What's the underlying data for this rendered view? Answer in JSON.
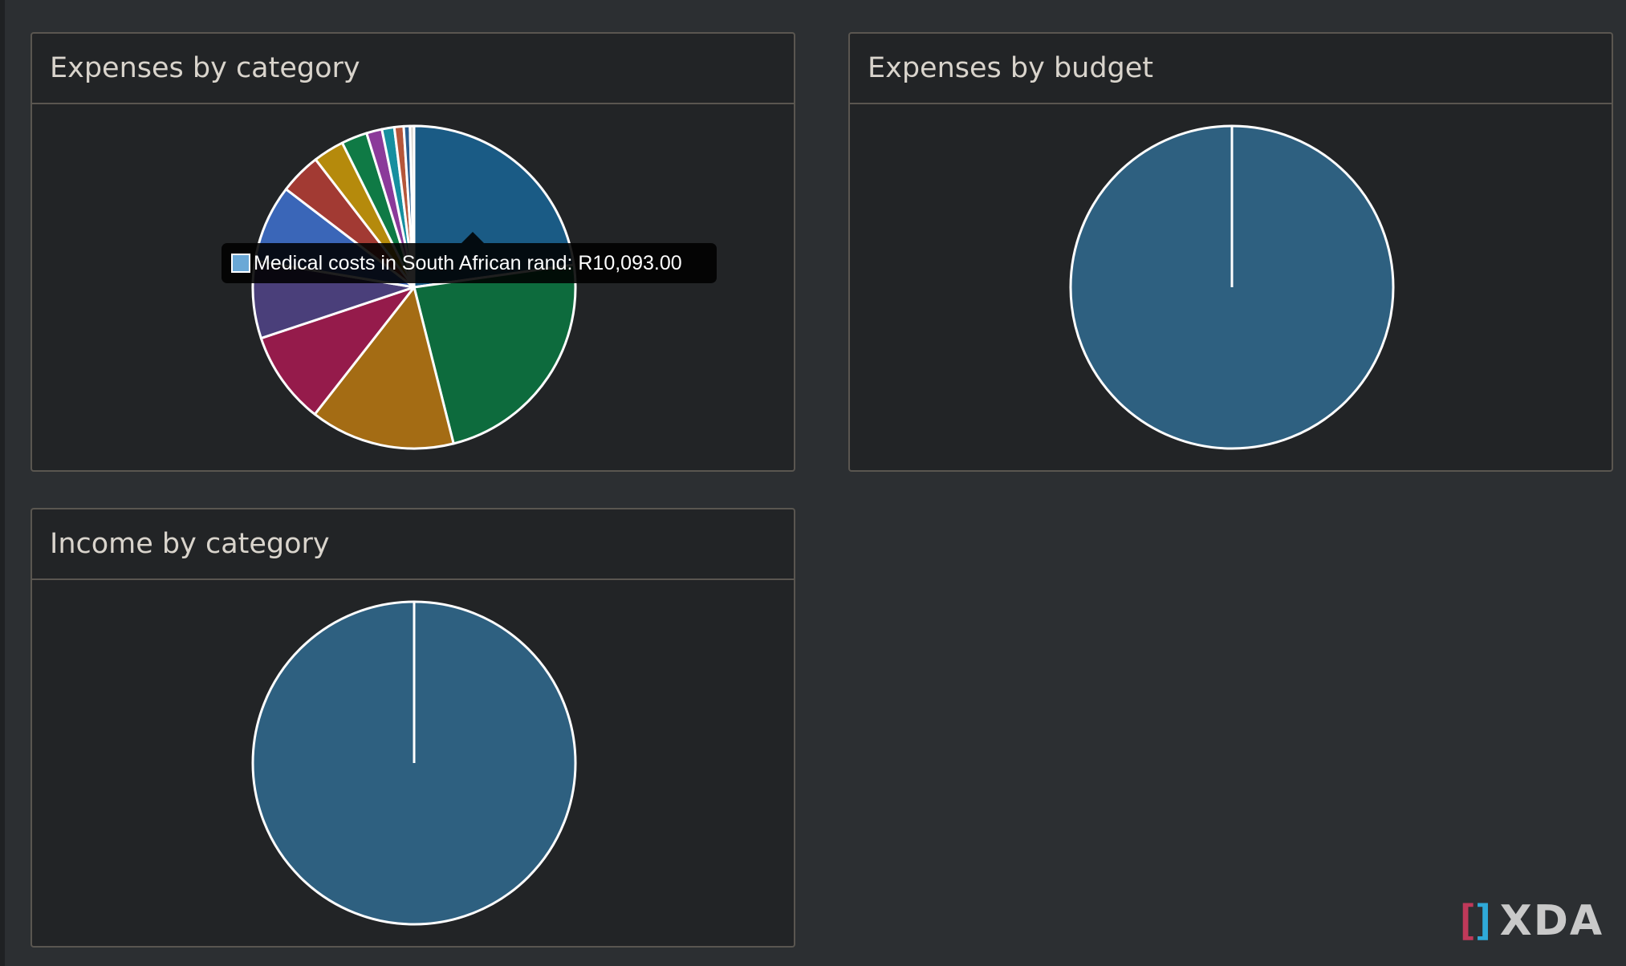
{
  "panels": {
    "expenses_by_category": {
      "title": "Expenses by category"
    },
    "expenses_by_budget": {
      "title": "Expenses by budget"
    },
    "income_by_category": {
      "title": "Income by category"
    }
  },
  "tooltip": {
    "text": "Medical costs in South African rand: R10,093.00",
    "swatch_color": "#6aa8d6"
  },
  "logo": {
    "text": "XDA",
    "bracket_left": "[",
    "bracket_right": "]"
  },
  "chart_data": [
    {
      "type": "pie",
      "title": "Expenses by category",
      "labels": [
        "Medical costs",
        "",
        "",
        "",
        "",
        "",
        "",
        "",
        "",
        "",
        "",
        "",
        "",
        ""
      ],
      "values": [
        22.0,
        22.5,
        14.0,
        9.0,
        7.5,
        7.5,
        4.0,
        3.0,
        2.5,
        1.5,
        1.2,
        0.9,
        0.6,
        0.4
      ],
      "colors": [
        "#1a5b85",
        "#0d6b3d",
        "#a46c14",
        "#951b4b",
        "#4a3f7a",
        "#3a66b8",
        "#a23a33",
        "#b58a0c",
        "#0f7a45",
        "#8b3a9a",
        "#168f9f",
        "#b5563a",
        "#2a5d8f",
        "#d9d4cc"
      ],
      "highlighted": "Medical costs",
      "tooltip_value": "R10,093.00"
    },
    {
      "type": "pie",
      "title": "Expenses by budget",
      "values": [
        100
      ],
      "colors": [
        "#2e6080"
      ]
    },
    {
      "type": "pie",
      "title": "Income by category",
      "values": [
        100
      ],
      "colors": [
        "#2e6080"
      ]
    }
  ]
}
